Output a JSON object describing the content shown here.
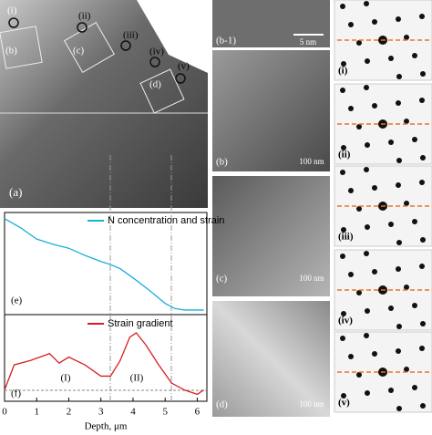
{
  "figure": {
    "panel_a": {
      "label": "(a)",
      "markers": [
        "(i)",
        "(ii)",
        "(iii)",
        "(iv)",
        "(v)"
      ],
      "regions": [
        "(b)",
        "(c)",
        "(d)"
      ]
    },
    "panel_b1": {
      "label": "(b-1)",
      "scale": "5 nm"
    },
    "panel_b": {
      "label": "(b)",
      "scale": "100 nm"
    },
    "panel_c": {
      "label": "(c)",
      "scale": "100 nm"
    },
    "panel_d": {
      "label": "(d)",
      "scale": "100 nm"
    },
    "diffraction": [
      "(i)",
      "(ii)",
      "(iii)",
      "(iv)",
      "(v)"
    ]
  },
  "chart_data": [
    {
      "type": "line",
      "label": "(e)",
      "x": [
        0,
        0.5,
        1,
        1.5,
        2,
        2.5,
        3,
        3.3,
        3.6,
        4,
        4.5,
        5,
        5.3,
        5.6,
        6.2
      ],
      "series": [
        {
          "name": "N concentration and strain",
          "color": "#1aaedc",
          "values": [
            0.94,
            0.85,
            0.74,
            0.69,
            0.65,
            0.58,
            0.52,
            0.49,
            0.45,
            0.36,
            0.24,
            0.11,
            0.06,
            0.045,
            0.045
          ]
        }
      ],
      "xlim": [
        0,
        6.3
      ],
      "ylim": [
        0,
        1
      ]
    },
    {
      "type": "line",
      "label": "(f)",
      "annotations": [
        "(I)",
        "(II)"
      ],
      "x": [
        0,
        0.3,
        0.8,
        1.4,
        1.7,
        2,
        2.5,
        3,
        3.3,
        3.6,
        3.9,
        4.1,
        4.4,
        4.8,
        5.2,
        5.6,
        6,
        6.2
      ],
      "series": [
        {
          "name": "Strain gradient",
          "color": "#d62020",
          "values": [
            0.13,
            0.42,
            0.47,
            0.55,
            0.44,
            0.51,
            0.42,
            0.29,
            0.29,
            0.47,
            0.74,
            0.79,
            0.65,
            0.42,
            0.21,
            0.13,
            0.08,
            0.13
          ]
        }
      ],
      "xlim": [
        0,
        6.3
      ],
      "ylim": [
        0,
        1
      ],
      "xticks": [
        0,
        1,
        2,
        3,
        4,
        5,
        6
      ],
      "xlabel": "Depth, μm"
    }
  ]
}
